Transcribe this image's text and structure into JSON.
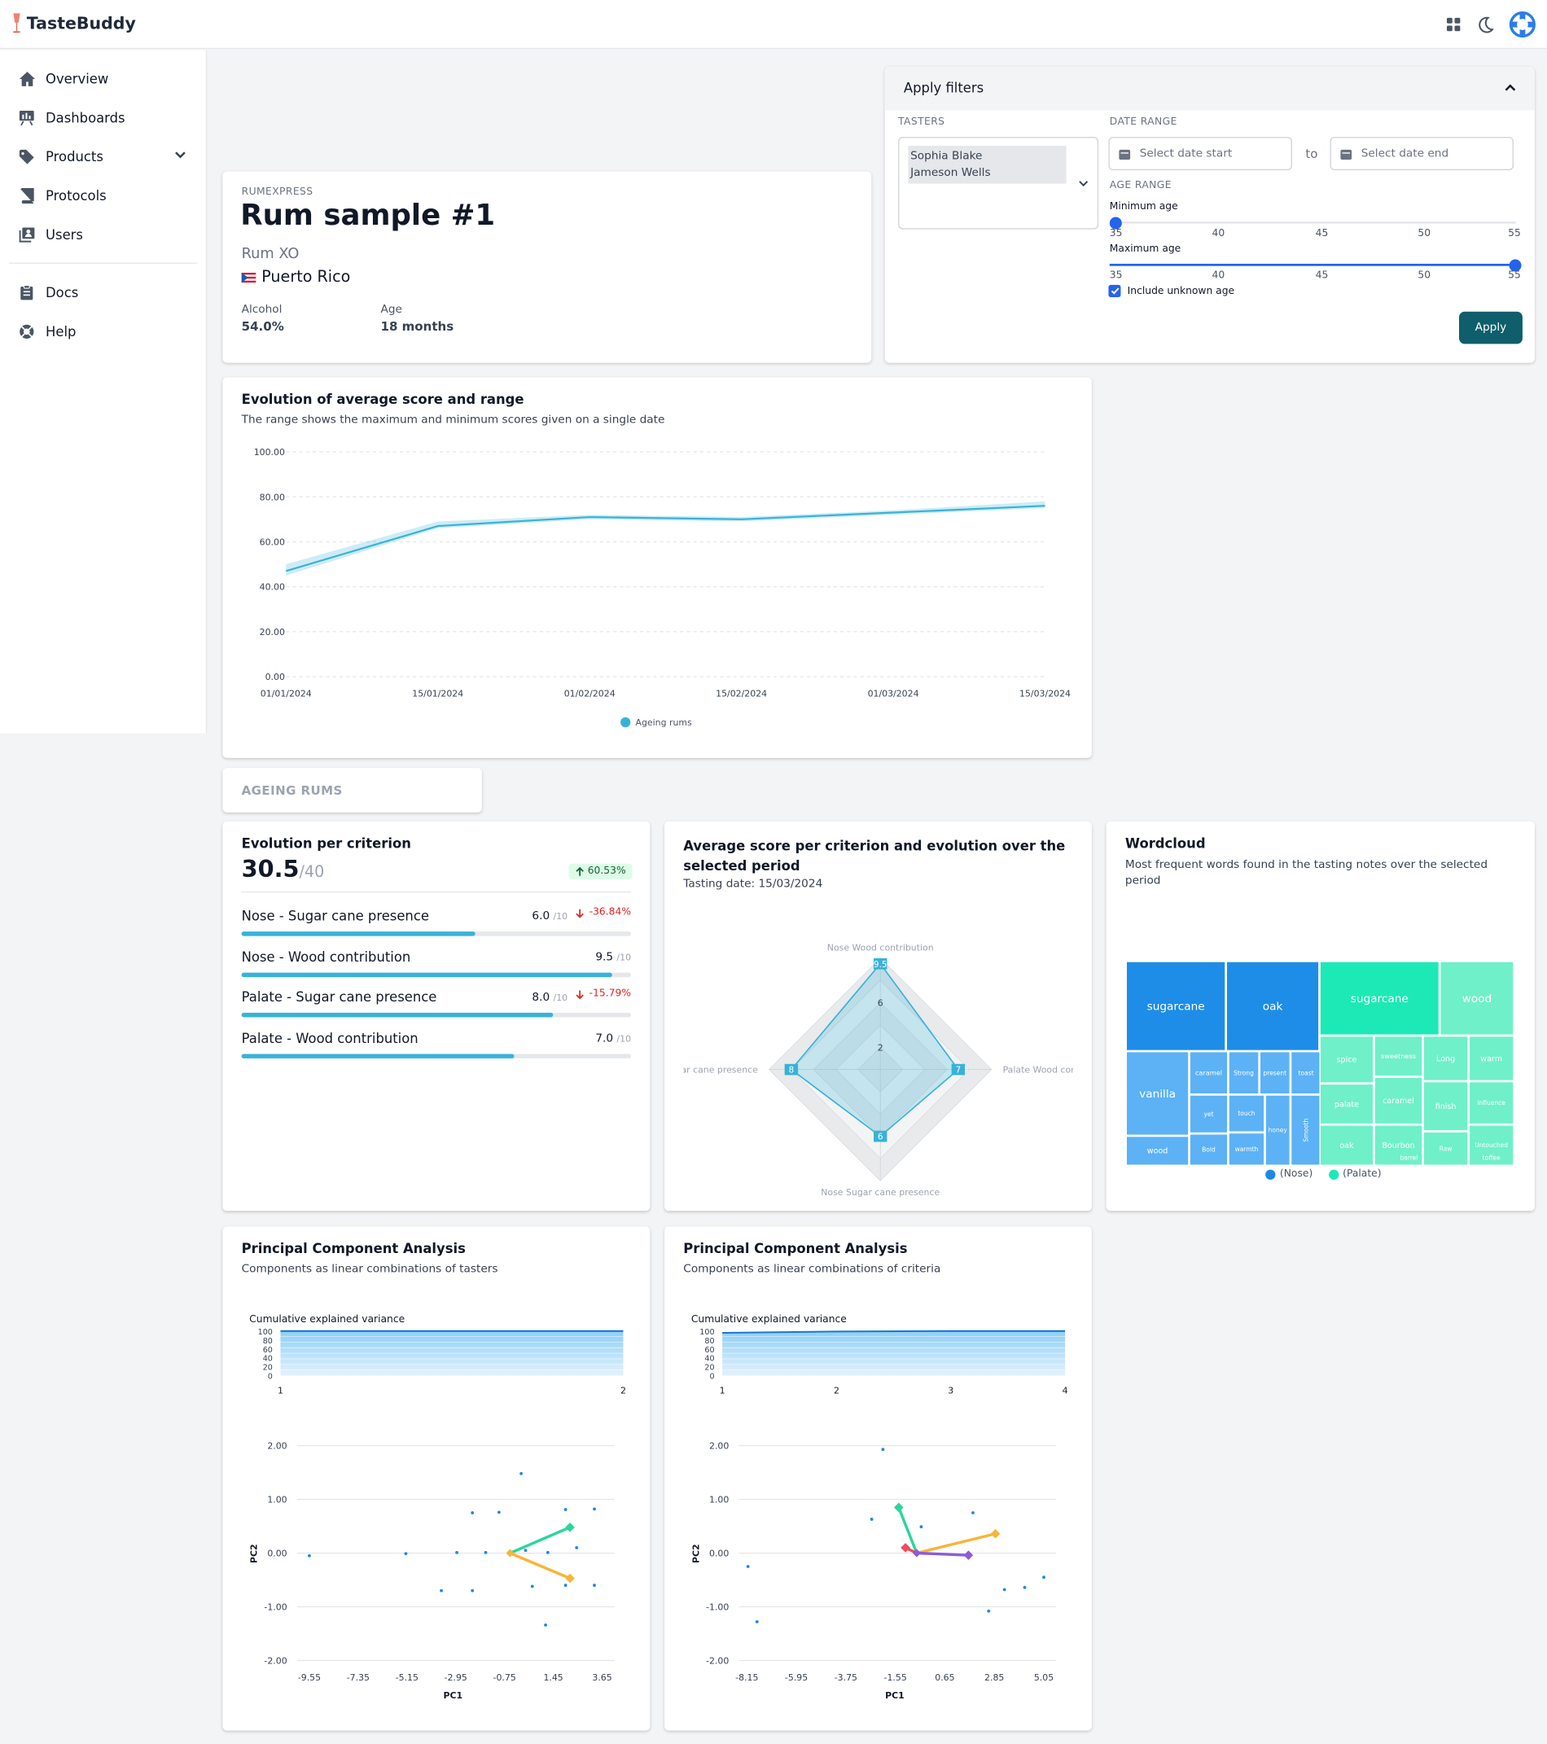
{
  "app": {
    "name": "TasteBuddy"
  },
  "sidebar": {
    "items": [
      {
        "label": "Overview",
        "icon": "home-icon"
      },
      {
        "label": "Dashboards",
        "icon": "presentation-chart-icon"
      },
      {
        "label": "Products",
        "icon": "tag-icon"
      },
      {
        "label": "Protocols",
        "icon": "book-icon"
      },
      {
        "label": "Users",
        "icon": "user-group-icon"
      },
      {
        "label": "Docs",
        "icon": "clipboard-icon"
      },
      {
        "label": "Help",
        "icon": "lifebuoy-icon"
      }
    ]
  },
  "product": {
    "brand": "RUMEXPRESS",
    "name": "Rum sample #1",
    "type": "Rum XO",
    "country": "Puerto Rico",
    "alcohol_label": "Alcohol",
    "alcohol": "54.0%",
    "age_label": "Age",
    "age": "18 months"
  },
  "filters": {
    "title": "Apply filters",
    "tasters_label": "TASTERS",
    "tasters": [
      "Sophia Blake",
      "Jameson Wells"
    ],
    "date_range_label": "DATE RANGE",
    "date_start_placeholder": "Select date start",
    "to": "to",
    "date_end_placeholder": "Select date end",
    "age_range_label": "AGE RANGE",
    "min_age_label": "Minimum age",
    "max_age_label": "Maximum age",
    "age_ticks": [
      "35",
      "40",
      "45",
      "50",
      "55"
    ],
    "min_age_value": 35,
    "max_age_value": 55,
    "include_unknown": "Include unknown age",
    "include_unknown_checked": true,
    "apply": "Apply"
  },
  "evolution_chart": {
    "title": "Evolution of average score and range",
    "subtitle": "The range shows the maximum and minimum scores given on a single date",
    "legend": "Ageing rums"
  },
  "section_tab": "AGEING RUMS",
  "criterion": {
    "title": "Evolution per criterion",
    "score": "30.5",
    "max": "/40",
    "delta": "60.53%",
    "items": [
      {
        "label": "Nose - Sugar cane presence",
        "value": "6.0",
        "max": "/10",
        "delta": "-36.84%",
        "fill": 0.6
      },
      {
        "label": "Nose - Wood contribution",
        "value": "9.5",
        "max": "/10",
        "delta": "",
        "fill": 0.95
      },
      {
        "label": "Palate - Sugar cane presence",
        "value": "8.0",
        "max": "/10",
        "delta": "-15.79%",
        "fill": 0.8
      },
      {
        "label": "Palate - Wood contribution",
        "value": "7.0",
        "max": "/10",
        "delta": "",
        "fill": 0.7
      }
    ]
  },
  "radar": {
    "title": "Average score per criterion and evolution over the selected period",
    "subtitle": "Tasting date: 15/03/2024"
  },
  "wordcloud": {
    "title": "Wordcloud",
    "subtitle": "Most frequent words found in the tasting notes over the selected period",
    "legend_nose": "(Nose)",
    "legend_palate": "(Palate)",
    "nose_color": "#1e88e5",
    "palate_color": "#1de9b6"
  },
  "pca1": {
    "title": "Principal Component Analysis",
    "subtitle": "Components as linear combinations of tasters",
    "variance_label": "Cumulative explained variance"
  },
  "pca2": {
    "title": "Principal Component Analysis",
    "subtitle": "Components as linear combinations of criteria",
    "variance_label": "Cumulative explained variance"
  },
  "chart_data": [
    {
      "type": "area",
      "title": "Evolution of average score and range",
      "x": [
        "01/01/2024",
        "15/01/2024",
        "01/02/2024",
        "15/02/2024",
        "01/03/2024",
        "15/03/2024"
      ],
      "series": [
        {
          "name": "Ageing rums",
          "values": [
            47,
            67,
            71,
            70,
            73,
            76
          ],
          "min": [
            45,
            66,
            70,
            69,
            72,
            75
          ],
          "max": [
            50,
            69,
            72,
            71,
            74,
            78
          ]
        }
      ],
      "ylim": [
        0,
        100
      ],
      "yticks": [
        "100.00",
        "80.00",
        "60.00",
        "40.00",
        "20.00",
        "0.00"
      ],
      "grid": true,
      "legend": "bottom"
    },
    {
      "type": "radar",
      "categories": [
        "Nose Wood contribution",
        "Palate Wood con",
        "Nose Sugar cane presence",
        "jar cane presence"
      ],
      "values": [
        9.5,
        7,
        6,
        8
      ],
      "value_labels": [
        "9.5",
        "7",
        "6",
        "8"
      ],
      "ticks": [
        "2",
        "6"
      ],
      "rmax": 10
    },
    {
      "type": "treemap",
      "labels": [
        {
          "text": "sugarcane",
          "group": "nose",
          "weight": 4
        },
        {
          "text": "oak",
          "group": "nose",
          "weight": 4
        },
        {
          "text": "vanilla",
          "group": "nose",
          "weight": 3
        },
        {
          "text": "caramel",
          "group": "nose",
          "weight": 1
        },
        {
          "text": "Strong",
          "group": "nose",
          "weight": 1
        },
        {
          "text": "present",
          "group": "nose",
          "weight": 1
        },
        {
          "text": "toast",
          "group": "nose",
          "weight": 1
        },
        {
          "text": "wood",
          "group": "nose",
          "weight": 1
        },
        {
          "text": "yet",
          "group": "nose",
          "weight": 1
        },
        {
          "text": "touch",
          "group": "nose",
          "weight": 1
        },
        {
          "text": "honey",
          "group": "nose",
          "weight": 1
        },
        {
          "text": "Smooth",
          "group": "nose",
          "weight": 1
        },
        {
          "text": "Bold",
          "group": "nose",
          "weight": 1
        },
        {
          "text": "warmth",
          "group": "nose",
          "weight": 1
        },
        {
          "text": "toffee",
          "group": "nose",
          "weight": 1
        },
        {
          "text": "sugarcane",
          "group": "palate",
          "weight": 4
        },
        {
          "text": "wood",
          "group": "palate",
          "weight": 2
        },
        {
          "text": "spice",
          "group": "palate",
          "weight": 1
        },
        {
          "text": "sweetness",
          "group": "palate",
          "weight": 1
        },
        {
          "text": "Long",
          "group": "palate",
          "weight": 1
        },
        {
          "text": "warm",
          "group": "palate",
          "weight": 1
        },
        {
          "text": "palate",
          "group": "palate",
          "weight": 1
        },
        {
          "text": "caramel",
          "group": "palate",
          "weight": 1
        },
        {
          "text": "finish",
          "group": "palate",
          "weight": 1
        },
        {
          "text": "influence",
          "group": "palate",
          "weight": 1
        },
        {
          "text": "oak",
          "group": "palate",
          "weight": 1
        },
        {
          "text": "Bourbon",
          "group": "palate",
          "weight": 1
        },
        {
          "text": "Raw",
          "group": "palate",
          "weight": 1
        },
        {
          "text": "Untouched",
          "group": "palate",
          "weight": 1
        },
        {
          "text": "barrel",
          "group": "palate",
          "weight": 1
        }
      ]
    },
    {
      "type": "area",
      "title": "Cumulative explained variance",
      "x": [
        "1",
        "2"
      ],
      "values": [
        100,
        100
      ],
      "ylim": [
        0,
        100
      ],
      "yticks": [
        "100",
        "80",
        "60",
        "40",
        "20",
        "0"
      ]
    },
    {
      "type": "scatter",
      "xlabel": "PC1",
      "ylabel": "PC2",
      "xticks": [
        "-9.55",
        "-7.35",
        "-5.15",
        "-2.95",
        "-0.75",
        "1.45",
        "3.65"
      ],
      "yticks": [
        "2.00",
        "1.00",
        "0.00",
        "-1.00",
        "-2.00"
      ],
      "xlim": [
        -10.1,
        4.2
      ],
      "ylim": [
        -2,
        2
      ],
      "points": [
        [
          -9.55,
          -0.05
        ],
        [
          -5.2,
          -0.01
        ],
        [
          -2.9,
          0.01
        ],
        [
          -2.2,
          0.75
        ],
        [
          -1.6,
          0.01
        ],
        [
          -1.0,
          0.76
        ],
        [
          0.0,
          1.48
        ],
        [
          0.2,
          0.05
        ],
        [
          0.5,
          -0.62
        ],
        [
          1.1,
          -1.34
        ],
        [
          1.2,
          0.01
        ],
        [
          2.0,
          0.81
        ],
        [
          2.0,
          -0.6
        ],
        [
          2.5,
          0.1
        ],
        [
          3.3,
          0.82
        ],
        [
          3.3,
          -0.6
        ],
        [
          -3.6,
          -0.7
        ],
        [
          -2.2,
          -0.7
        ]
      ],
      "loadings": [
        {
          "from": [
            -0.5,
            0.0
          ],
          "to": [
            2.2,
            0.48
          ],
          "color": "#2bd699"
        },
        {
          "from": [
            -0.5,
            0.0
          ],
          "to": [
            2.2,
            -0.47
          ],
          "color": "#f8b43a"
        }
      ]
    },
    {
      "type": "area",
      "title": "Cumulative explained variance",
      "x": [
        "1",
        "2",
        "3",
        "4"
      ],
      "values": [
        96,
        99,
        100,
        100
      ],
      "ylim": [
        0,
        100
      ],
      "yticks": [
        "100",
        "80",
        "60",
        "40",
        "20",
        "0"
      ]
    },
    {
      "type": "scatter",
      "xlabel": "PC1",
      "ylabel": "PC2",
      "xticks": [
        "-8.15",
        "-5.95",
        "-3.75",
        "-1.55",
        "0.65",
        "2.85",
        "5.05"
      ],
      "yticks": [
        "2.00",
        "1.00",
        "0.00",
        "-1.00",
        "-2.00"
      ],
      "xlim": [
        -8.5,
        5.6
      ],
      "ylim": [
        -2,
        2
      ],
      "points": [
        [
          -8.1,
          -0.25
        ],
        [
          -7.7,
          -1.28
        ],
        [
          -2.1,
          1.93
        ],
        [
          -2.6,
          0.63
        ],
        [
          -0.4,
          0.49
        ],
        [
          1.9,
          0.75
        ],
        [
          2.6,
          -1.08
        ],
        [
          3.3,
          -0.68
        ],
        [
          4.2,
          -0.64
        ],
        [
          5.05,
          -0.45
        ]
      ],
      "loadings": [
        {
          "from": [
            -0.6,
            0.0
          ],
          "to": [
            -1.4,
            0.85
          ],
          "color": "#2bd699"
        },
        {
          "from": [
            -0.6,
            0.0
          ],
          "to": [
            2.9,
            0.36
          ],
          "color": "#f8b43a"
        },
        {
          "from": [
            -0.6,
            0.0
          ],
          "to": [
            -1.1,
            0.1
          ],
          "color": "#ef4b5f"
        },
        {
          "from": [
            -0.6,
            0.0
          ],
          "to": [
            1.7,
            -0.04
          ],
          "color": "#8e5bd8"
        }
      ]
    }
  ]
}
